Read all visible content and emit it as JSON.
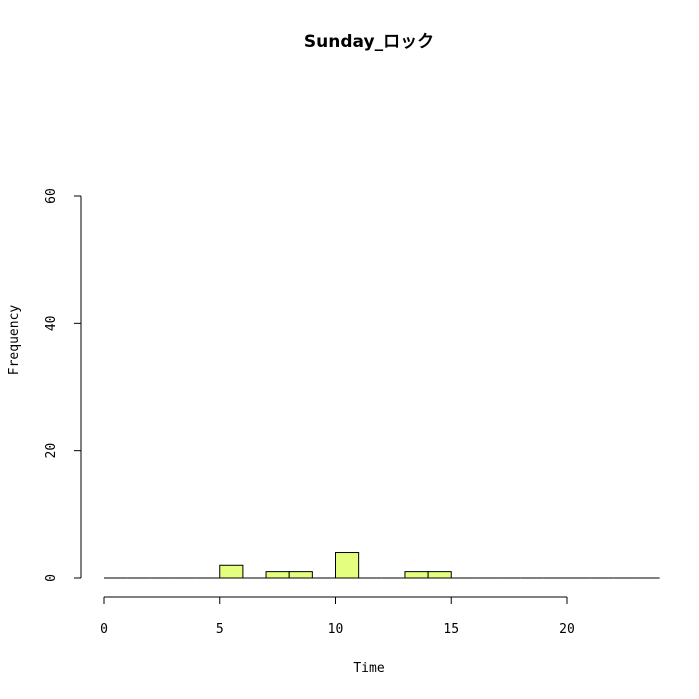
{
  "chart_data": {
    "type": "bar",
    "title": "Sunday_ロック",
    "xlabel": "Time",
    "ylabel": "Frequency",
    "xlim": [
      0,
      24
    ],
    "ylim": [
      0,
      60
    ],
    "x_ticks": [
      0,
      5,
      10,
      15,
      20
    ],
    "y_ticks": [
      0,
      20,
      40,
      60
    ],
    "bin_width": 1,
    "bins": [
      {
        "start": 0,
        "value": 0
      },
      {
        "start": 1,
        "value": 0
      },
      {
        "start": 2,
        "value": 0
      },
      {
        "start": 3,
        "value": 0
      },
      {
        "start": 4,
        "value": 0
      },
      {
        "start": 5,
        "value": 2
      },
      {
        "start": 6,
        "value": 0
      },
      {
        "start": 7,
        "value": 1
      },
      {
        "start": 8,
        "value": 1
      },
      {
        "start": 9,
        "value": 0
      },
      {
        "start": 10,
        "value": 4
      },
      {
        "start": 11,
        "value": 0
      },
      {
        "start": 12,
        "value": 0
      },
      {
        "start": 13,
        "value": 1
      },
      {
        "start": 14,
        "value": 1
      },
      {
        "start": 15,
        "value": 0
      },
      {
        "start": 16,
        "value": 0
      },
      {
        "start": 17,
        "value": 0
      },
      {
        "start": 18,
        "value": 0
      },
      {
        "start": 19,
        "value": 0
      },
      {
        "start": 20,
        "value": 0
      },
      {
        "start": 21,
        "value": 0
      },
      {
        "start": 22,
        "value": 0
      },
      {
        "start": 23,
        "value": 0
      }
    ],
    "bar_color": "#e4ff7f",
    "grid": false,
    "legend": "none"
  }
}
